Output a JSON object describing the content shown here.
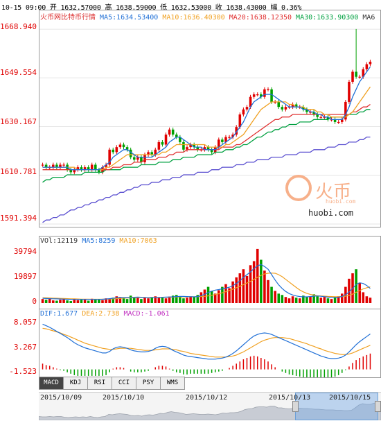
{
  "header": {
    "quote_line": "10-15 09:00 开 1632.57000 高 1638.59000 低 1632.53000 收 1638.43000 幅 0.36%"
  },
  "main_panel": {
    "title": "火币网比特币行情",
    "ma5": "MA5:1634.53400",
    "ma10": "MA10:1636.40300",
    "ma20": "MA20:1638.12350",
    "ma30": "MA30:1633.90300",
    "ma_extra": "MA6",
    "yticks": [
      "1668.940",
      "1649.554",
      "1630.167",
      "1610.781",
      "1591.394"
    ],
    "watermark_brand": "火币",
    "watermark_url": "huobi.com",
    "watermark_text": "huobi.com"
  },
  "volume_panel": {
    "vol": "VOl:12119",
    "ma5": "MA5:8259",
    "ma10": "MA10:7063",
    "yticks": [
      "39794",
      "19897",
      "0"
    ]
  },
  "macd_panel": {
    "dif": "DIF:1.677",
    "dea": "DEA:2.738",
    "macd": "MACD:-1.061",
    "yticks": [
      "8.057",
      "3.267",
      "-1.523"
    ]
  },
  "tabs": [
    "MACD",
    "KDJ",
    "RSI",
    "CCI",
    "PSY",
    "WMS"
  ],
  "dates": [
    "2015/10/09",
    "2015/10/10",
    "2015/10/12",
    "2015/10/13",
    "2015/10/15"
  ],
  "colors": {
    "up": "#e00000",
    "down": "#00a000",
    "ma5": "#1f6fd6",
    "ma10": "#f0a020",
    "ma20": "#e03030",
    "ma30": "#00a040",
    "long": "#5a4fd0"
  },
  "chart_data": [
    {
      "type": "candlestick",
      "title": "火币网比特币行情",
      "ylim": [
        1591.394,
        1672
      ],
      "y_ticks": [
        1668.94,
        1649.554,
        1630.167,
        1610.781,
        1591.394
      ],
      "close": [
        1615,
        1614,
        1614,
        1615,
        1614,
        1615,
        1615,
        1613,
        1612,
        1613,
        1614,
        1613,
        1614,
        1613,
        1615,
        1613,
        1612,
        1614,
        1615,
        1621,
        1620,
        1622,
        1623,
        1622,
        1621,
        1618,
        1617,
        1618,
        1616,
        1619,
        1620,
        1619,
        1621,
        1624,
        1623,
        1627,
        1629,
        1627,
        1626,
        1624,
        1621,
        1622,
        1623,
        1622,
        1621,
        1621,
        1622,
        1621,
        1620,
        1622,
        1625,
        1624,
        1626,
        1626,
        1627,
        1630,
        1635,
        1637,
        1638,
        1642,
        1643,
        1643,
        1642,
        1645,
        1645,
        1640,
        1640,
        1638,
        1637,
        1638,
        1638,
        1639,
        1638,
        1638,
        1637,
        1636,
        1636,
        1635,
        1634,
        1634,
        1634,
        1633,
        1633,
        1632,
        1632,
        1633,
        1640,
        1648,
        1652,
        1650,
        1650,
        1653,
        1655,
        1656
      ],
      "high_spike": 1669.0,
      "ma5": [
        1614,
        1614,
        1614,
        1614,
        1614,
        1614,
        1614,
        1614,
        1613,
        1613,
        1613,
        1613,
        1613,
        1613,
        1613,
        1613,
        1613,
        1614,
        1615,
        1616,
        1618,
        1619,
        1620,
        1621,
        1621,
        1620,
        1619,
        1618,
        1618,
        1618,
        1618,
        1618,
        1619,
        1620,
        1621,
        1622,
        1624,
        1625,
        1626,
        1626,
        1625,
        1624,
        1623,
        1622,
        1622,
        1622,
        1621,
        1621,
        1621,
        1621,
        1622,
        1623,
        1624,
        1625,
        1626,
        1628,
        1630,
        1632,
        1635,
        1638,
        1640,
        1641,
        1642,
        1643,
        1643,
        1643,
        1642,
        1641,
        1640,
        1639,
        1638,
        1638,
        1638,
        1638,
        1637,
        1637,
        1636,
        1636,
        1635,
        1635,
        1634,
        1634,
        1633,
        1633,
        1633,
        1633,
        1635,
        1638,
        1642,
        1645,
        1648,
        1650,
        1652,
        1654
      ],
      "ma10": [
        1614,
        1614,
        1614,
        1614,
        1614,
        1614,
        1614,
        1614,
        1614,
        1614,
        1613,
        1613,
        1613,
        1613,
        1613,
        1613,
        1613,
        1613,
        1614,
        1614,
        1615,
        1616,
        1617,
        1618,
        1619,
        1619,
        1619,
        1619,
        1619,
        1619,
        1619,
        1619,
        1619,
        1619,
        1620,
        1620,
        1621,
        1622,
        1623,
        1623,
        1623,
        1623,
        1623,
        1623,
        1623,
        1623,
        1623,
        1622,
        1622,
        1622,
        1622,
        1622,
        1623,
        1623,
        1624,
        1625,
        1626,
        1627,
        1629,
        1631,
        1633,
        1635,
        1637,
        1638,
        1639,
        1640,
        1640,
        1640,
        1640,
        1640,
        1639,
        1639,
        1638,
        1638,
        1638,
        1637,
        1637,
        1637,
        1636,
        1636,
        1635,
        1635,
        1634,
        1634,
        1634,
        1634,
        1634,
        1635,
        1636,
        1638,
        1640,
        1642,
        1644,
        1646
      ],
      "ma20": [
        1613,
        1613,
        1613,
        1613,
        1613,
        1613,
        1613,
        1613,
        1613,
        1613,
        1613,
        1613,
        1613,
        1613,
        1613,
        1613,
        1613,
        1613,
        1613,
        1613,
        1614,
        1614,
        1614,
        1615,
        1615,
        1615,
        1616,
        1616,
        1616,
        1617,
        1617,
        1617,
        1617,
        1618,
        1618,
        1618,
        1619,
        1619,
        1620,
        1620,
        1620,
        1621,
        1621,
        1621,
        1621,
        1621,
        1621,
        1621,
        1621,
        1621,
        1621,
        1622,
        1622,
        1622,
        1622,
        1623,
        1623,
        1624,
        1625,
        1626,
        1627,
        1628,
        1629,
        1630,
        1631,
        1632,
        1633,
        1633,
        1634,
        1634,
        1634,
        1635,
        1635,
        1635,
        1635,
        1635,
        1635,
        1635,
        1635,
        1635,
        1635,
        1635,
        1635,
        1635,
        1635,
        1635,
        1635,
        1635,
        1636,
        1636,
        1637,
        1638,
        1638,
        1639
      ],
      "ma30": [
        1608,
        1609,
        1609,
        1610,
        1610,
        1610,
        1610,
        1611,
        1611,
        1611,
        1611,
        1611,
        1612,
        1612,
        1612,
        1612,
        1612,
        1612,
        1613,
        1613,
        1613,
        1613,
        1613,
        1614,
        1614,
        1614,
        1614,
        1614,
        1615,
        1615,
        1615,
        1615,
        1615,
        1616,
        1616,
        1616,
        1616,
        1617,
        1617,
        1617,
        1618,
        1618,
        1618,
        1618,
        1619,
        1619,
        1619,
        1619,
        1619,
        1620,
        1620,
        1620,
        1621,
        1621,
        1621,
        1622,
        1622,
        1623,
        1623,
        1624,
        1625,
        1626,
        1626,
        1627,
        1628,
        1628,
        1629,
        1629,
        1630,
        1630,
        1631,
        1631,
        1631,
        1632,
        1632,
        1632,
        1632,
        1633,
        1633,
        1633,
        1633,
        1633,
        1634,
        1634,
        1634,
        1634,
        1634,
        1635,
        1635,
        1635,
        1636,
        1636,
        1637,
        1637
      ],
      "long_ma": [
        1592,
        1593,
        1593,
        1594,
        1594,
        1595,
        1595,
        1596,
        1597,
        1597,
        1598,
        1598,
        1599,
        1599,
        1600,
        1600,
        1601,
        1601,
        1602,
        1602,
        1603,
        1603,
        1604,
        1604,
        1605,
        1605,
        1606,
        1606,
        1607,
        1607,
        1607,
        1608,
        1608,
        1608,
        1609,
        1609,
        1609,
        1610,
        1610,
        1610,
        1611,
        1611,
        1611,
        1611,
        1612,
        1612,
        1612,
        1612,
        1613,
        1613,
        1613,
        1614,
        1614,
        1614,
        1614,
        1615,
        1615,
        1615,
        1616,
        1616,
        1616,
        1617,
        1617,
        1617,
        1617,
        1618,
        1618,
        1618,
        1618,
        1619,
        1619,
        1619,
        1619,
        1620,
        1620,
        1620,
        1620,
        1621,
        1621,
        1621,
        1621,
        1622,
        1622,
        1622,
        1623,
        1623,
        1623,
        1624,
        1624,
        1624,
        1625,
        1625,
        1626,
        1626
      ]
    },
    {
      "type": "bar",
      "title": "VOl",
      "ylim": [
        0,
        42000
      ],
      "y_ticks": [
        39794,
        19897,
        0
      ],
      "values": [
        3000,
        2500,
        3500,
        2000,
        1800,
        2500,
        3000,
        2000,
        1500,
        2800,
        2200,
        3000,
        2500,
        1800,
        3200,
        2500,
        2800,
        2200,
        3500,
        3000,
        4000,
        5000,
        4500,
        3500,
        3000,
        5500,
        4500,
        3800,
        3000,
        4200,
        3500,
        4500,
        5000,
        3800,
        4200,
        3500,
        4800,
        5500,
        6000,
        4500,
        3500,
        4000,
        5000,
        4500,
        6000,
        8000,
        10000,
        12000,
        9000,
        7000,
        9500,
        12000,
        14000,
        11000,
        16000,
        19000,
        22000,
        25000,
        20000,
        28000,
        31000,
        40000,
        32000,
        24000,
        17000,
        12000,
        9000,
        7000,
        6000,
        4500,
        3500,
        5000,
        4000,
        3500,
        5500,
        4500,
        5000,
        6500,
        5000,
        4000,
        4500,
        3500,
        3000,
        4500,
        5000,
        7000,
        12000,
        18000,
        22000,
        25000,
        15000,
        8000,
        5000,
        4000
      ],
      "ma5": [
        3500,
        3400,
        3300,
        3200,
        3100,
        3000,
        2900,
        2800,
        2700,
        2700,
        2700,
        2700,
        2700,
        2700,
        2700,
        2700,
        2700,
        2800,
        3000,
        3300,
        3600,
        3900,
        4100,
        4100,
        4100,
        4200,
        4300,
        4400,
        4300,
        4200,
        4000,
        4000,
        4100,
        4200,
        4300,
        4400,
        4500,
        4600,
        4800,
        4900,
        4900,
        4800,
        4700,
        4600,
        4800,
        5500,
        6500,
        7800,
        8800,
        9600,
        10000,
        10500,
        11000,
        11800,
        12800,
        14500,
        16500,
        19000,
        21000,
        23000,
        25500,
        27500,
        28500,
        27000,
        25000,
        21000,
        17000,
        13500,
        10800,
        8600,
        7000,
        6000,
        5300,
        4800,
        4600,
        4600,
        4800,
        5100,
        5300,
        5000,
        4700,
        4400,
        4200,
        4100,
        4300,
        4900,
        6200,
        8200,
        10800,
        13800,
        15000,
        14500,
        13000,
        10800
      ],
      "ma10": [
        4000,
        3900,
        3800,
        3700,
        3600,
        3500,
        3400,
        3300,
        3200,
        3100,
        3000,
        2900,
        2900,
        2850,
        2800,
        2800,
        2800,
        2850,
        2900,
        3000,
        3100,
        3300,
        3500,
        3700,
        3800,
        3900,
        4000,
        4100,
        4100,
        4100,
        4100,
        4100,
        4100,
        4100,
        4200,
        4300,
        4300,
        4400,
        4500,
        4500,
        4600,
        4600,
        4700,
        4700,
        4700,
        4800,
        5000,
        5300,
        5800,
        6300,
        6900,
        7600,
        8400,
        9300,
        10300,
        11300,
        12400,
        13600,
        14800,
        16000,
        17500,
        19000,
        20500,
        21500,
        22000,
        22200,
        22000,
        21000,
        19500,
        17500,
        15500,
        13500,
        11500,
        9700,
        8300,
        7200,
        6400,
        5900,
        5500,
        5300,
        5100,
        4900,
        4800,
        4700,
        4700,
        4800,
        5100,
        5700,
        6600,
        7900,
        9200,
        10500,
        11300,
        12000
      ]
    },
    {
      "type": "line",
      "title": "MACD",
      "ylim": [
        -2.2,
        8.6
      ],
      "y_ticks": [
        8.057,
        3.267,
        -1.523
      ],
      "dif": [
        7.6,
        7.3,
        7.0,
        6.6,
        6.2,
        5.8,
        5.4,
        5.0,
        4.5,
        4.0,
        3.6,
        3.3,
        3.0,
        2.8,
        2.6,
        2.4,
        2.2,
        2.0,
        2.0,
        2.3,
        2.8,
        3.1,
        3.2,
        3.1,
        2.9,
        2.6,
        2.4,
        2.3,
        2.2,
        2.2,
        2.3,
        2.5,
        2.9,
        3.2,
        3.3,
        3.2,
        2.9,
        2.5,
        2.2,
        1.9,
        1.6,
        1.4,
        1.3,
        1.2,
        1.1,
        1.0,
        0.9,
        0.8,
        0.8,
        0.8,
        0.9,
        1.0,
        1.2,
        1.5,
        1.9,
        2.4,
        3.0,
        3.6,
        4.2,
        4.8,
        5.3,
        5.6,
        5.8,
        5.9,
        5.8,
        5.6,
        5.3,
        5.0,
        4.7,
        4.4,
        4.1,
        3.8,
        3.5,
        3.2,
        2.9,
        2.6,
        2.3,
        2.0,
        1.7,
        1.4,
        1.2,
        1.0,
        0.9,
        0.9,
        1.0,
        1.2,
        1.6,
        2.2,
        2.9,
        3.6,
        4.2,
        4.7,
        5.2,
        5.7
      ],
      "dea": [
        6.8,
        6.7,
        6.5,
        6.3,
        6.1,
        5.9,
        5.6,
        5.4,
        5.1,
        4.8,
        4.5,
        4.2,
        3.9,
        3.7,
        3.5,
        3.3,
        3.1,
        2.9,
        2.8,
        2.7,
        2.7,
        2.8,
        2.9,
        2.9,
        2.9,
        2.9,
        2.8,
        2.7,
        2.6,
        2.5,
        2.5,
        2.5,
        2.6,
        2.7,
        2.8,
        2.8,
        2.8,
        2.7,
        2.6,
        2.4,
        2.3,
        2.1,
        1.9,
        1.8,
        1.7,
        1.6,
        1.5,
        1.4,
        1.3,
        1.2,
        1.2,
        1.2,
        1.2,
        1.3,
        1.4,
        1.6,
        1.9,
        2.2,
        2.6,
        3.0,
        3.4,
        3.8,
        4.2,
        4.5,
        4.7,
        4.9,
        5.0,
        5.0,
        5.0,
        4.9,
        4.8,
        4.6,
        4.4,
        4.2,
        4.0,
        3.8,
        3.5,
        3.3,
        3.0,
        2.8,
        2.5,
        2.3,
        2.1,
        1.9,
        1.8,
        1.7,
        1.7,
        1.8,
        2.0,
        2.3,
        2.6,
        2.9,
        3.2,
        3.5
      ]
    }
  ]
}
